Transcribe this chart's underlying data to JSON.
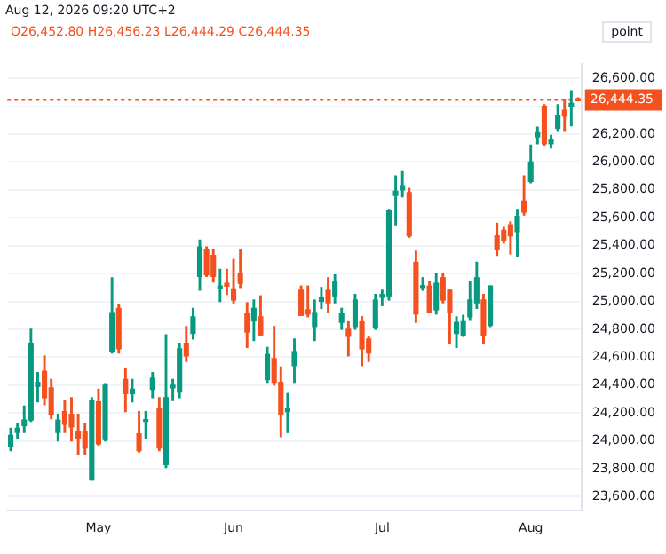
{
  "chart_data": {
    "type": "candlestick",
    "annotations": [
      "Aug 12, 2026 09:20 UTC+2",
      "O26,452.80 H26,456.23 L26,444.29 C26,444.35",
      "point"
    ],
    "categories": [
      null,
      null,
      null,
      null,
      null,
      null,
      null,
      null,
      null,
      null,
      null,
      null,
      null,
      "May",
      null,
      null,
      null,
      null,
      null,
      null,
      null,
      null,
      null,
      null,
      null,
      null,
      null,
      null,
      null,
      null,
      null,
      null,
      null,
      "Jun",
      null,
      null,
      null,
      null,
      null,
      null,
      null,
      null,
      null,
      null,
      null,
      null,
      null,
      null,
      null,
      null,
      null,
      null,
      null,
      null,
      null,
      "Jul",
      null,
      null,
      null,
      null,
      null,
      null,
      null,
      null,
      null,
      null,
      null,
      null,
      null,
      null,
      null,
      null,
      null,
      null,
      null,
      null,
      null,
      "Aug",
      null,
      null,
      null,
      null,
      null,
      null,
      null
    ],
    "ohlc": [
      [
        23960,
        24090,
        23930,
        24040
      ],
      [
        24060,
        24120,
        24020,
        24090
      ],
      [
        24110,
        24250,
        24060,
        24150
      ],
      [
        24150,
        24800,
        24140,
        24700
      ],
      [
        24390,
        24490,
        24280,
        24420
      ],
      [
        24500,
        24610,
        24260,
        24310
      ],
      [
        24380,
        24440,
        24160,
        24190
      ],
      [
        24060,
        24190,
        24000,
        24150
      ],
      [
        24210,
        24290,
        24060,
        24120
      ],
      [
        24190,
        24310,
        24000,
        24100
      ],
      [
        24070,
        24190,
        23900,
        24020
      ],
      [
        24070,
        24120,
        23900,
        23950
      ],
      [
        23720,
        24310,
        23720,
        24290
      ],
      [
        24280,
        24370,
        23970,
        23980
      ],
      [
        24010,
        24410,
        24000,
        24400
      ],
      [
        24640,
        25170,
        24630,
        24920
      ],
      [
        24950,
        24980,
        24630,
        24660
      ],
      [
        24440,
        24520,
        24210,
        24340
      ],
      [
        24340,
        24440,
        24280,
        24370
      ],
      [
        24050,
        24210,
        23920,
        23930
      ],
      [
        24140,
        24210,
        24020,
        24150
      ],
      [
        24370,
        24490,
        24310,
        24450
      ],
      [
        24230,
        24310,
        23930,
        23950
      ],
      [
        23830,
        24760,
        23810,
        24310
      ],
      [
        24380,
        24440,
        24290,
        24400
      ],
      [
        24350,
        24700,
        24310,
        24660
      ],
      [
        24700,
        24820,
        24570,
        24610
      ],
      [
        24770,
        24950,
        24730,
        24890
      ],
      [
        25180,
        25440,
        25080,
        25390
      ],
      [
        25370,
        25390,
        25180,
        25190
      ],
      [
        25330,
        25370,
        25140,
        25180
      ],
      [
        25090,
        25230,
        25000,
        25110
      ],
      [
        25130,
        25230,
        25050,
        25110
      ],
      [
        25090,
        25300,
        24990,
        25010
      ],
      [
        25200,
        25370,
        25100,
        25130
      ],
      [
        24910,
        24990,
        24670,
        24780
      ],
      [
        24860,
        25010,
        24720,
        24950
      ],
      [
        24890,
        25040,
        24760,
        24760
      ],
      [
        24440,
        24670,
        24420,
        24620
      ],
      [
        24590,
        24820,
        24400,
        24420
      ],
      [
        24420,
        24530,
        24030,
        24190
      ],
      [
        24210,
        24340,
        24060,
        24230
      ],
      [
        24540,
        24730,
        24420,
        24640
      ],
      [
        25080,
        25110,
        24900,
        24900
      ],
      [
        24940,
        25110,
        24890,
        24910
      ],
      [
        24820,
        25010,
        24720,
        24920
      ],
      [
        25000,
        25100,
        24950,
        25030
      ],
      [
        25080,
        25170,
        24920,
        24990
      ],
      [
        25040,
        25190,
        24990,
        25140
      ],
      [
        24850,
        24950,
        24800,
        24910
      ],
      [
        24800,
        24860,
        24610,
        24750
      ],
      [
        24820,
        25050,
        24800,
        25010
      ],
      [
        24860,
        24890,
        24540,
        24660
      ],
      [
        24730,
        24750,
        24570,
        24630
      ],
      [
        24810,
        25050,
        24800,
        25010
      ],
      [
        25030,
        25080,
        24970,
        25050
      ],
      [
        25040,
        25660,
        25010,
        25650
      ],
      [
        25760,
        25900,
        25550,
        25790
      ],
      [
        25800,
        25930,
        25750,
        25830
      ],
      [
        25780,
        25810,
        25460,
        25470
      ],
      [
        25280,
        25360,
        24850,
        24910
      ],
      [
        25100,
        25170,
        25080,
        25110
      ],
      [
        25110,
        25140,
        24920,
        24920
      ],
      [
        24940,
        25200,
        24910,
        25130
      ],
      [
        25170,
        25200,
        24990,
        25010
      ],
      [
        25080,
        25080,
        24700,
        24920
      ],
      [
        24770,
        24890,
        24670,
        24850
      ],
      [
        24760,
        24900,
        24750,
        24860
      ],
      [
        24890,
        25140,
        24870,
        25010
      ],
      [
        24990,
        25280,
        24950,
        25170
      ],
      [
        25010,
        25050,
        24700,
        24760
      ],
      [
        24830,
        25110,
        24820,
        25110
      ],
      [
        25470,
        25560,
        25330,
        25370
      ],
      [
        25510,
        25530,
        25420,
        25440
      ],
      [
        25550,
        25570,
        25340,
        25470
      ],
      [
        25500,
        25660,
        25320,
        25610
      ],
      [
        25720,
        25900,
        25620,
        25640
      ],
      [
        25860,
        26120,
        25850,
        26000
      ],
      [
        26180,
        26250,
        26130,
        26210
      ],
      [
        26400,
        26410,
        26120,
        26130
      ],
      [
        26130,
        26190,
        26100,
        26160
      ],
      [
        26240,
        26410,
        26220,
        26330
      ],
      [
        26370,
        26450,
        26220,
        26330
      ],
      [
        26400,
        26510,
        26260,
        26420
      ],
      [
        26450,
        26460,
        26440,
        26440
      ]
    ],
    "colors": [
      "#089981",
      "#089981",
      "#089981",
      "#089981",
      "#089981",
      "#f4511e",
      "#f4511e",
      "#089981",
      "#f4511e",
      "#f4511e",
      "#f4511e",
      "#f4511e",
      "#089981",
      "#f4511e",
      "#089981",
      "#089981",
      "#f4511e",
      "#f4511e",
      "#089981",
      "#f4511e",
      "#089981",
      "#089981",
      "#f4511e",
      "#089981",
      "#089981",
      "#089981",
      "#f4511e",
      "#089981",
      "#089981",
      "#f4511e",
      "#f4511e",
      "#089981",
      "#f4511e",
      "#f4511e",
      "#f4511e",
      "#f4511e",
      "#089981",
      "#f4511e",
      "#089981",
      "#f4511e",
      "#f4511e",
      "#089981",
      "#089981",
      "#f4511e",
      "#f4511e",
      "#089981",
      "#089981",
      "#f4511e",
      "#089981",
      "#089981",
      "#f4511e",
      "#089981",
      "#f4511e",
      "#f4511e",
      "#089981",
      "#089981",
      "#089981",
      "#089981",
      "#089981",
      "#f4511e",
      "#f4511e",
      "#089981",
      "#f4511e",
      "#089981",
      "#f4511e",
      "#f4511e",
      "#089981",
      "#089981",
      "#089981",
      "#089981",
      "#f4511e",
      "#089981",
      "#f4511e",
      "#f4511e",
      "#f4511e",
      "#089981",
      "#f4511e",
      "#089981",
      "#089981",
      "#f4511e",
      "#089981",
      "#089981",
      "#f4511e",
      "#089981",
      "#f4511e"
    ],
    "ylim": [
      23500,
      26700
    ],
    "yticks": [
      {
        "value": 23600,
        "label": "23,600.00"
      },
      {
        "value": 23800,
        "label": "23,800.00"
      },
      {
        "value": 24000,
        "label": "24,000.00"
      },
      {
        "value": 24200,
        "label": "24,200.00"
      },
      {
        "value": 24400,
        "label": "24,400.00"
      },
      {
        "value": 24600,
        "label": "24,600.00"
      },
      {
        "value": 24800,
        "label": "24,800.00"
      },
      {
        "value": 25000,
        "label": "25,000.00"
      },
      {
        "value": 25200,
        "label": "25,200.00"
      },
      {
        "value": 25400,
        "label": "25,400.00"
      },
      {
        "value": 25600,
        "label": "25,600.00"
      },
      {
        "value": 25800,
        "label": "25,800.00"
      },
      {
        "value": 26000,
        "label": "26,000.00"
      },
      {
        "value": 26200,
        "label": "26,200.00"
      },
      {
        "value": 26400,
        "label": null
      },
      {
        "value": 26600,
        "label": "26,600.00"
      }
    ],
    "grid": "y",
    "legend": false,
    "ref_lines": [
      {
        "axis": "y",
        "value": 26444.35,
        "label": "26,444.35",
        "color": "#f4511e",
        "line_style": "dashed"
      }
    ]
  }
}
